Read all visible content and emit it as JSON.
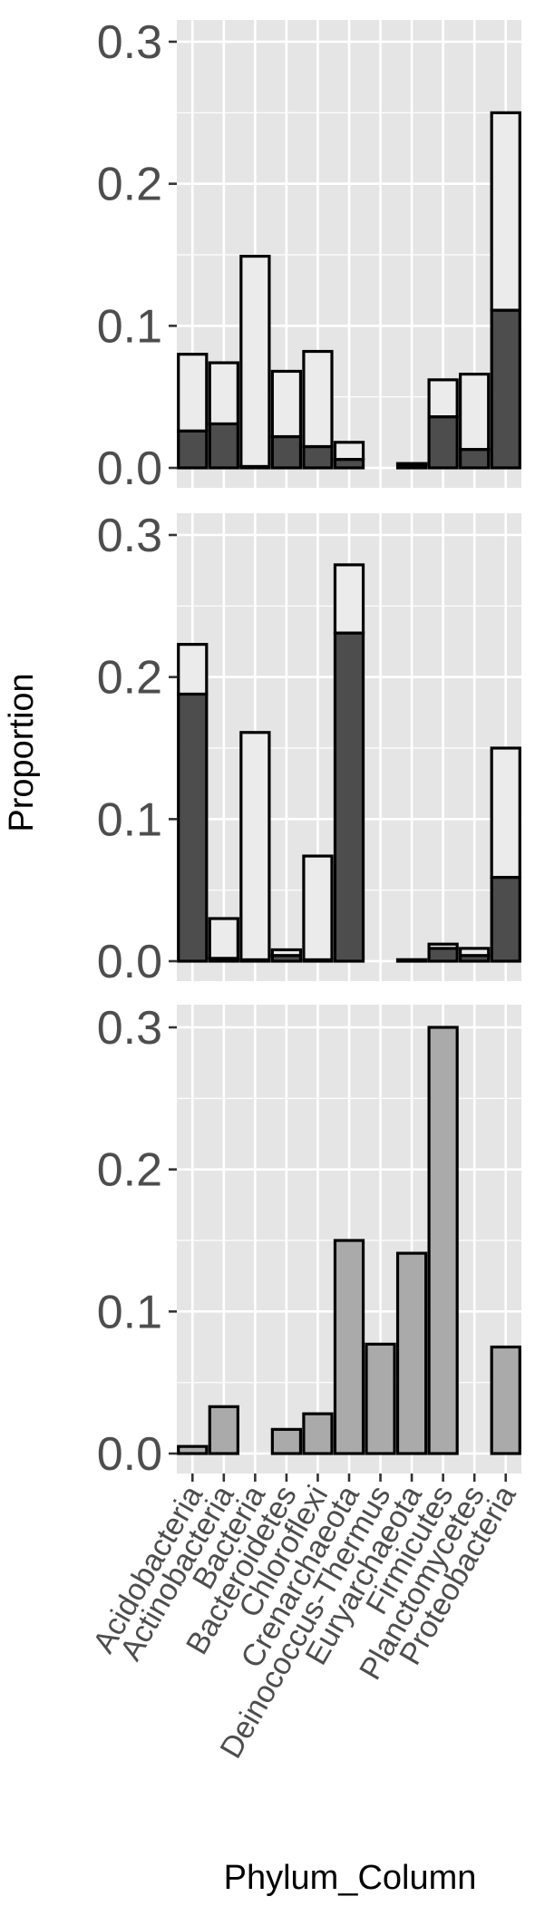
{
  "chart_data": {
    "type": "bar",
    "stacked": true,
    "xlabel": "Phylum_Column",
    "ylabel": "Proportion",
    "ylim": [
      0,
      0.3
    ],
    "yticks": [
      "0.0",
      "0.1",
      "0.2",
      "0.3"
    ],
    "yticks_values": [
      0,
      0.1,
      0.2,
      0.3
    ],
    "categories": [
      "Acidobacteria",
      "Actinobacteria",
      "Bacteria",
      "Bacteroidetes",
      "Chloroflexi",
      "Crenarchaeota",
      "Deinococcus-Thermus",
      "Euryarchaeota",
      "Firmicutes",
      "Planctomycetes",
      "Proteobacteria"
    ],
    "grid": true,
    "legend": "none",
    "colors": {
      "panel_bg": "#e5e5e5",
      "grid": "#ffffff",
      "dark_fill": "#4d4d4d",
      "light_fill": "#ebebeb",
      "mid_fill": "#aaaaaa",
      "bar_outline": "#000000",
      "tick": "#333333"
    },
    "panels": [
      {
        "series": [
          {
            "fill": "dark",
            "values": [
              0.026,
              0.031,
              0.001,
              0.022,
              0.015,
              0.006,
              null,
              0.003,
              0.036,
              0.013,
              0.111
            ]
          },
          {
            "fill": "light",
            "values": [
              0.054,
              0.043,
              0.148,
              0.046,
              0.067,
              0.012,
              null,
              0.0,
              0.026,
              0.053,
              0.139
            ]
          }
        ]
      },
      {
        "series": [
          {
            "fill": "dark",
            "values": [
              0.188,
              0.002,
              0.001,
              0.004,
              0.001,
              0.231,
              null,
              0.001,
              0.009,
              0.004,
              0.059
            ]
          },
          {
            "fill": "light",
            "values": [
              0.035,
              0.028,
              0.16,
              0.004,
              0.073,
              0.048,
              null,
              0.0,
              0.003,
              0.005,
              0.091
            ]
          }
        ]
      },
      {
        "series": [
          {
            "fill": "mid",
            "values": [
              0.005,
              0.033,
              null,
              0.017,
              0.028,
              0.15,
              0.077,
              0.141,
              0.3,
              null,
              0.075
            ]
          }
        ]
      }
    ]
  }
}
